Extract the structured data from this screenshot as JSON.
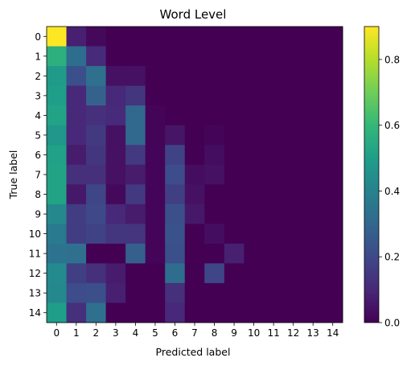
{
  "chart_data": {
    "type": "heatmap",
    "title": "Word Level",
    "xlabel": "Predicted label",
    "ylabel": "True label",
    "x_categories": [
      "0",
      "1",
      "2",
      "3",
      "4",
      "5",
      "6",
      "7",
      "8",
      "9",
      "10",
      "11",
      "12",
      "13",
      "14"
    ],
    "y_categories": [
      "0",
      "1",
      "2",
      "3",
      "4",
      "5",
      "6",
      "7",
      "8",
      "9",
      "10",
      "11",
      "12",
      "13",
      "14"
    ],
    "colormap": "viridis",
    "vmin": 0.0,
    "vmax": 0.9,
    "colorbar_ticks": [
      "0.0",
      "0.2",
      "0.4",
      "0.6",
      "0.8"
    ],
    "colorbar_tick_values": [
      0.0,
      0.2,
      0.4,
      0.6,
      0.8
    ],
    "grid": false,
    "values": [
      [
        0.9,
        0.08,
        0.02,
        0.0,
        0.0,
        0.0,
        0.0,
        0.0,
        0.0,
        0.0,
        0.0,
        0.0,
        0.0,
        0.0,
        0.0
      ],
      [
        0.57,
        0.32,
        0.11,
        0.0,
        0.0,
        0.0,
        0.0,
        0.0,
        0.0,
        0.0,
        0.0,
        0.0,
        0.0,
        0.0,
        0.0
      ],
      [
        0.49,
        0.22,
        0.33,
        0.04,
        0.04,
        0.0,
        0.0,
        0.0,
        0.0,
        0.0,
        0.0,
        0.0,
        0.0,
        0.0,
        0.0
      ],
      [
        0.5,
        0.1,
        0.28,
        0.1,
        0.14,
        0.0,
        0.0,
        0.0,
        0.0,
        0.0,
        0.0,
        0.0,
        0.0,
        0.0,
        0.0
      ],
      [
        0.52,
        0.1,
        0.12,
        0.11,
        0.3,
        0.01,
        0.0,
        0.0,
        0.0,
        0.0,
        0.0,
        0.0,
        0.0,
        0.0,
        0.0
      ],
      [
        0.47,
        0.1,
        0.15,
        0.04,
        0.3,
        0.01,
        0.05,
        0.0,
        0.01,
        0.0,
        0.0,
        0.0,
        0.0,
        0.0,
        0.0
      ],
      [
        0.51,
        0.07,
        0.14,
        0.04,
        0.15,
        0.01,
        0.18,
        0.0,
        0.03,
        0.0,
        0.0,
        0.0,
        0.0,
        0.0,
        0.0
      ],
      [
        0.52,
        0.12,
        0.12,
        0.04,
        0.07,
        0.01,
        0.21,
        0.03,
        0.04,
        0.0,
        0.0,
        0.0,
        0.0,
        0.0,
        0.0
      ],
      [
        0.52,
        0.06,
        0.19,
        0.02,
        0.15,
        0.01,
        0.17,
        0.04,
        0.0,
        0.0,
        0.0,
        0.0,
        0.0,
        0.0,
        0.0
      ],
      [
        0.42,
        0.16,
        0.2,
        0.1,
        0.07,
        0.01,
        0.22,
        0.06,
        0.0,
        0.0,
        0.0,
        0.0,
        0.0,
        0.0,
        0.0
      ],
      [
        0.37,
        0.16,
        0.18,
        0.14,
        0.14,
        0.01,
        0.23,
        0.0,
        0.03,
        0.0,
        0.0,
        0.0,
        0.0,
        0.0,
        0.0
      ],
      [
        0.34,
        0.33,
        0.0,
        0.0,
        0.27,
        0.01,
        0.22,
        0.0,
        0.0,
        0.08,
        0.0,
        0.0,
        0.0,
        0.0,
        0.0
      ],
      [
        0.43,
        0.17,
        0.12,
        0.07,
        0.0,
        0.0,
        0.32,
        0.0,
        0.19,
        0.0,
        0.0,
        0.0,
        0.0,
        0.0,
        0.0
      ],
      [
        0.42,
        0.21,
        0.22,
        0.08,
        0.0,
        0.0,
        0.12,
        0.0,
        0.0,
        0.0,
        0.0,
        0.0,
        0.0,
        0.0,
        0.0
      ],
      [
        0.5,
        0.12,
        0.33,
        0.0,
        0.0,
        0.0,
        0.1,
        0.0,
        0.0,
        0.0,
        0.0,
        0.0,
        0.0,
        0.0,
        0.0
      ]
    ]
  }
}
